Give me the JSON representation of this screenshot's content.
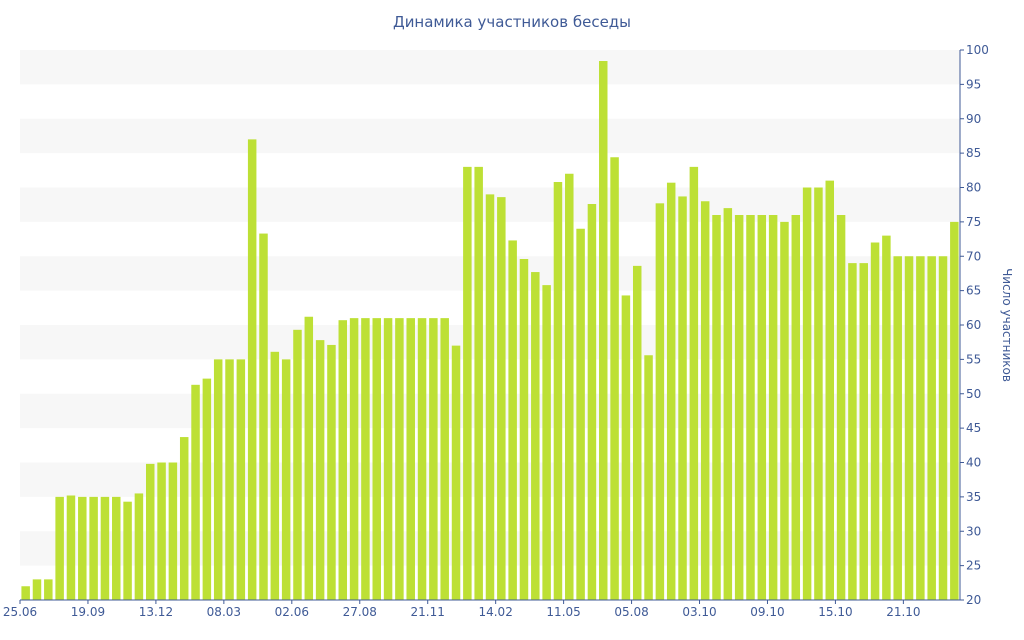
{
  "chart_data": {
    "type": "bar",
    "title": "Динамика участников беседы",
    "xlabel": "",
    "ylabel": "Число участников",
    "ylim": [
      20,
      100
    ],
    "y_ticks": [
      20,
      25,
      30,
      35,
      40,
      45,
      50,
      55,
      60,
      65,
      70,
      75,
      80,
      85,
      90,
      95,
      100
    ],
    "grid": "horizontal alternating bands",
    "x_tick_labels": [
      {
        "index": 0,
        "label": "25.06"
      },
      {
        "index": 6,
        "label": "19.09"
      },
      {
        "index": 12,
        "label": "13.12"
      },
      {
        "index": 18,
        "label": "08.03"
      },
      {
        "index": 24,
        "label": "02.06"
      },
      {
        "index": 30,
        "label": "27.08"
      },
      {
        "index": 36,
        "label": "21.11"
      },
      {
        "index": 42,
        "label": "14.02"
      },
      {
        "index": 48,
        "label": "11.05"
      },
      {
        "index": 54,
        "label": "05.08"
      },
      {
        "index": 60,
        "label": "03.10"
      },
      {
        "index": 66,
        "label": "09.10"
      },
      {
        "index": 72,
        "label": "15.10"
      },
      {
        "index": 78,
        "label": "21.10"
      }
    ],
    "values": [
      22,
      23,
      23,
      35,
      35.2,
      35,
      35,
      35,
      35,
      34.3,
      35.5,
      39.8,
      40,
      40,
      43.7,
      51.3,
      52.2,
      55,
      55,
      55,
      87,
      73.3,
      56.1,
      55,
      59.3,
      61.2,
      57.8,
      57.1,
      60.7,
      61,
      61,
      61,
      61,
      61,
      61,
      61,
      61,
      61,
      57,
      83,
      83,
      79,
      78.6,
      72.3,
      69.6,
      67.7,
      65.8,
      80.8,
      82,
      74,
      77.6,
      98.4,
      84.4,
      64.3,
      68.6,
      55.6,
      77.7,
      80.7,
      78.7,
      83,
      78,
      76,
      77,
      76,
      76,
      76,
      76,
      75,
      76,
      80,
      80,
      81,
      76,
      69,
      69,
      72,
      73,
      70,
      70,
      70,
      70,
      70,
      75
    ],
    "bar_color": "#bde035",
    "axis_color": "#3f5a96",
    "band_color": "#f7f7f7"
  }
}
